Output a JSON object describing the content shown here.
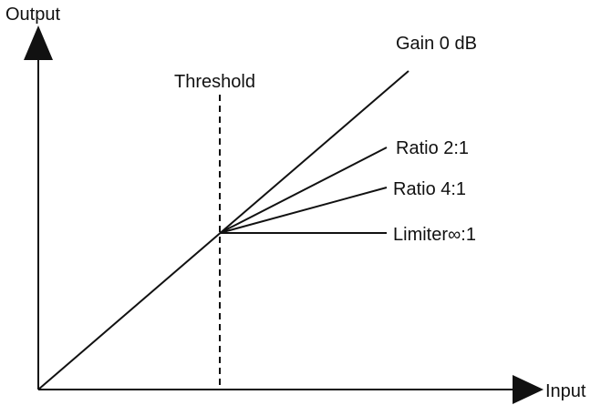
{
  "axes": {
    "y_label": "Output",
    "x_label": "Input"
  },
  "threshold": {
    "label": "Threshold"
  },
  "curves": [
    {
      "id": "gain",
      "label": "Gain 0 dB",
      "slope": 1
    },
    {
      "id": "ratio-2",
      "label": "Ratio 2:1",
      "slope": 0.5
    },
    {
      "id": "ratio-4",
      "label": "Ratio 4:1",
      "slope": 0.25
    },
    {
      "id": "limiter",
      "label": "Limiter∞:1",
      "slope": 0
    }
  ],
  "colors": {
    "line": "#111111",
    "background": "#ffffff"
  }
}
